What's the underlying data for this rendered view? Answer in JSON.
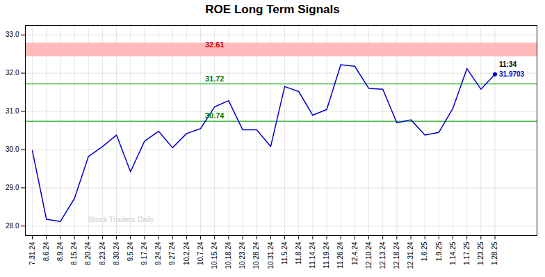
{
  "chart_data": {
    "type": "line",
    "title": "ROE Long Term Signals",
    "categories": [
      "7.31.24",
      "8.6.24",
      "8.9.24",
      "8.15.24",
      "8.20.24",
      "8.23.24",
      "8.30.24",
      "9.5.24",
      "9.17.24",
      "9.24.24",
      "9.27.24",
      "10.2.24",
      "10.7.24",
      "10.15.24",
      "10.18.24",
      "10.23.24",
      "10.28.24",
      "10.31.24",
      "11.5.24",
      "11.8.24",
      "11.14.24",
      "11.19.24",
      "11.26.24",
      "12.4.24",
      "12.10.24",
      "12.13.24",
      "12.18.24",
      "12.31.24",
      "1.6.25",
      "1.9.25",
      "1.14.25",
      "1.17.25",
      "1.23.25",
      "1.28.25"
    ],
    "values": [
      29.97,
      28.18,
      28.12,
      28.72,
      29.82,
      30.08,
      30.38,
      29.42,
      30.22,
      30.48,
      30.05,
      30.42,
      30.55,
      31.12,
      31.28,
      30.52,
      30.52,
      30.08,
      31.65,
      31.52,
      30.9,
      31.05,
      32.22,
      32.18,
      31.6,
      31.58,
      30.7,
      30.78,
      30.38,
      30.45,
      31.08,
      32.12,
      31.58,
      31.9703
    ],
    "color": "#0000cc",
    "ylim": [
      27.75,
      33.25
    ],
    "yticks": [
      28,
      29,
      30,
      31,
      32,
      33
    ],
    "grid": true,
    "reference_lines": [
      {
        "value": 32.61,
        "label": "32.61",
        "band": [
          32.43,
          32.79
        ],
        "color": "#ffbbbb",
        "label_color": "#cc0000"
      },
      {
        "value": 31.72,
        "label": "31.72",
        "color": "#44bb44",
        "label_color": "#007700"
      },
      {
        "value": 30.74,
        "label": "30.74",
        "color": "#44bb44",
        "label_color": "#007700"
      }
    ],
    "last_point": {
      "label": "11:34",
      "value": 31.9703
    },
    "watermark": "Stock Traders Daily"
  }
}
